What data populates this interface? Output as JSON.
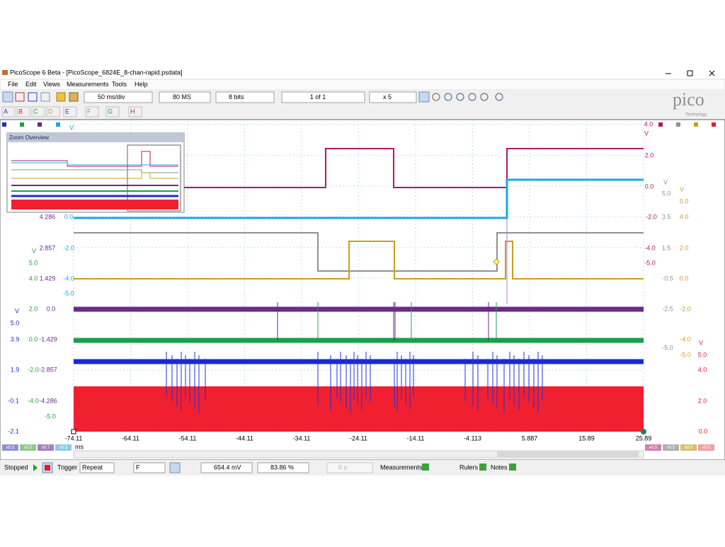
{
  "window": {
    "title": "PicoScope 6 Beta - [PicoScope_6824E_8-chan-rapid.psdata]"
  },
  "menu": [
    "File",
    "Edit",
    "Views",
    "Measurements",
    "Tools",
    "Help"
  ],
  "toolbar": {
    "timebase": "50 ms/div",
    "samples": "80 MS",
    "resolution": "8 bits",
    "buffer": "1 of 1",
    "zoom": "x 5"
  },
  "channels": [
    "A",
    "B",
    "C",
    "D",
    "E",
    "F",
    "G",
    "H"
  ],
  "logo": {
    "name": "pico",
    "tagline": "Technology"
  },
  "zoom_overview": {
    "title": "Zoom Overview"
  },
  "scales": {
    "a_blue": [
      "V",
      "5.0",
      "3.9",
      "1.9",
      "-0.1",
      "-2.1"
    ],
    "b_green": [
      "V",
      "5.0",
      "4.0",
      "2.0",
      "0.0",
      "-2.0",
      "-4.0",
      "-5.0"
    ],
    "c_purple": [
      "4.286",
      "2.857",
      "1.429",
      "0.0",
      "-1.429",
      "-2.857",
      "-4.286"
    ],
    "d_light_blue": [
      "V",
      "0.0",
      "-2.0",
      "-4.0",
      "-5.0"
    ],
    "e_magenta": [
      "4.0",
      "V",
      "2.0",
      "0.0",
      "-2.0",
      "-4.0",
      "-5.0"
    ],
    "f_gray": [
      "V",
      "5.0",
      "3.5",
      "1.5",
      "-0.5",
      "-2.5",
      "-5.0"
    ],
    "g_gold": [
      "V",
      "5.0",
      "4.0",
      "2.0",
      "0.0",
      "-2.0",
      "-4.0",
      "-5.0"
    ],
    "h_red": [
      "V",
      "5.0",
      "4.0",
      "2.0",
      "0.0"
    ]
  },
  "x_axis": {
    "ticks": [
      "-74.11",
      "-64.11",
      "-54.11",
      "-44.11",
      "-34.11",
      "-24.11",
      "-14.11",
      "-4.113",
      "5.887",
      "15.89",
      "25.89"
    ],
    "unit": "ms"
  },
  "scale_chips": {
    "left": [
      "x0.5",
      "x0.5",
      "x0.7",
      "x0.3"
    ],
    "right": [
      "x0.5",
      "x0.5",
      "x0.5",
      "x0.5"
    ]
  },
  "status_bar": {
    "state": "Stopped",
    "trigger_label": "Trigger",
    "trigger_mode": "Repeat",
    "trigger_source": "F",
    "threshold": "654.4 mV",
    "pre_trigger": "83.86 %",
    "delay": "0 s",
    "measurements": "Measurements",
    "rulers": "Rulers",
    "notes": "Notes"
  }
}
